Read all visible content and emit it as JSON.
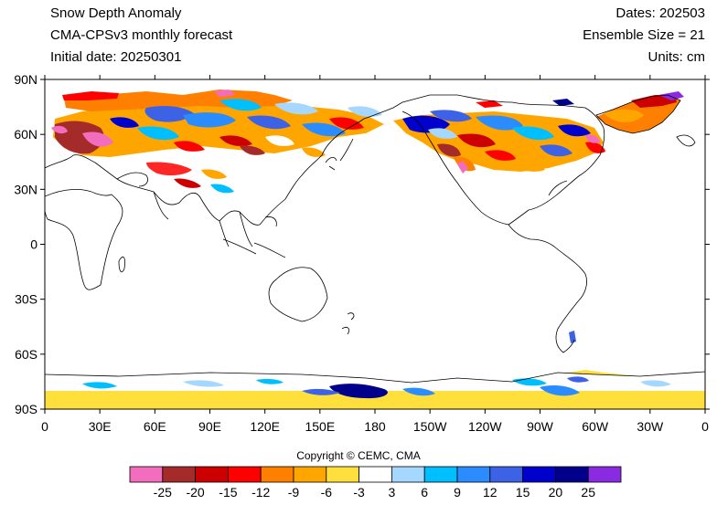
{
  "header": {
    "title": "Snow Depth Anomaly",
    "model": "CMA-CPSv3 monthly forecast",
    "initial_date": "Initial date: 20250301",
    "dates": "Dates: 202503",
    "ensemble": "Ensemble Size = 21",
    "units": "Units: cm"
  },
  "axes": {
    "lat_ticks": [
      "90N",
      "60N",
      "30N",
      "0",
      "30S",
      "60S",
      "90S"
    ],
    "lon_ticks": [
      "0",
      "30E",
      "60E",
      "90E",
      "120E",
      "150E",
      "180",
      "150W",
      "120W",
      "90W",
      "60W",
      "30W",
      "0"
    ]
  },
  "copyright": "Copyright © CEMC, CMA",
  "colorbar": {
    "colors": [
      "#f36dbf",
      "#a52a2a",
      "#cc0000",
      "#ff0000",
      "#ff7f00",
      "#ffa500",
      "#ffdf3b",
      "#ffffff",
      "#a6d8ff",
      "#00bfff",
      "#2a8cff",
      "#3d62e6",
      "#0000cd",
      "#00008b",
      "#8a2be2"
    ],
    "labels": [
      "-25",
      "-20",
      "-15",
      "-12",
      "-9",
      "-6",
      "-3",
      "3",
      "6",
      "9",
      "12",
      "15",
      "20",
      "25"
    ]
  },
  "map_colors": {
    "coast": "#000000",
    "ocean": "#ffffff",
    "antarctic_fill": "#ffdf3b"
  }
}
